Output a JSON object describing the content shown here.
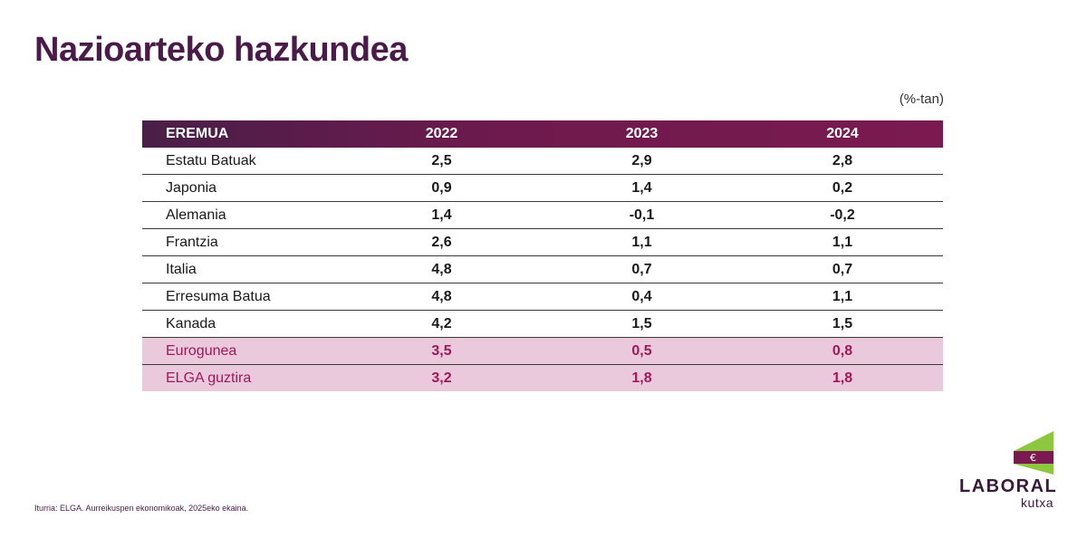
{
  "title": "Nazioarteko hazkundea",
  "unit": "(%-tan)",
  "table": {
    "headers": [
      "EREMUA",
      "2022",
      "2023",
      "2024"
    ],
    "rows": [
      {
        "region": "Estatu Batuak",
        "values": [
          "2,5",
          "2,9",
          "2,8"
        ]
      },
      {
        "region": "Japonia",
        "values": [
          "0,9",
          "1,4",
          "0,2"
        ]
      },
      {
        "region": "Alemania",
        "values": [
          "1,4",
          "-0,1",
          "-0,2"
        ]
      },
      {
        "region": "Frantzia",
        "values": [
          "2,6",
          "1,1",
          "1,1"
        ]
      },
      {
        "region": "Italia",
        "values": [
          "4,8",
          "0,7",
          "0,7"
        ]
      },
      {
        "region": "Erresuma Batua",
        "values": [
          "4,8",
          "0,4",
          "1,1"
        ]
      },
      {
        "region": "Kanada",
        "values": [
          "4,2",
          "1,5",
          "1,5"
        ]
      },
      {
        "region": "Eurogunea",
        "values": [
          "3,5",
          "0,5",
          "0,8"
        ]
      },
      {
        "region": "ELGA guztira",
        "values": [
          "3,2",
          "1,8",
          "1,8"
        ]
      }
    ]
  },
  "source": "Iturria: ELGA. Aurreikuspen ekonomikoak, 2025eko ekaina.",
  "logo": {
    "word": "LABORAL",
    "sub": "kutxa"
  },
  "colors": {
    "title": "#4a1a4a",
    "header_start": "#4a1e48",
    "header_end": "#7a1a50",
    "highlight_bg": "#ebc9dd",
    "highlight_text": "#a0185a",
    "logo_green": "#8dc63f",
    "logo_purple": "#7a1a50"
  }
}
